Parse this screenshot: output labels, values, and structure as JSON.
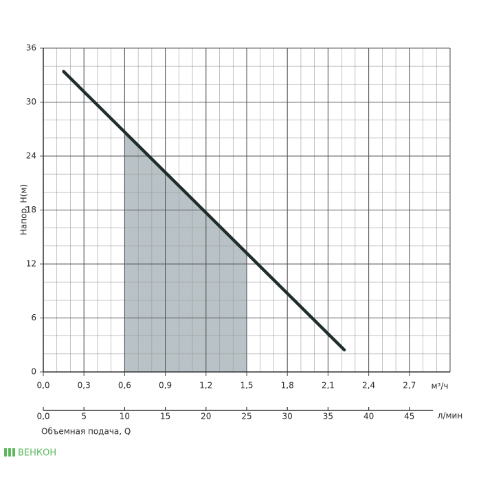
{
  "chart_data": {
    "type": "line",
    "y_label": "Напор, H(м)",
    "x_label": "Объемная подача, Q",
    "x_unit": "м³/ч",
    "x2_unit": "л/мин",
    "watermark": "ВЕНКОН",
    "xlim": [
      0,
      3.0
    ],
    "xticks": [
      {
        "value": 0,
        "label": "0,0"
      },
      {
        "value": 0.3,
        "label": "0,3"
      },
      {
        "value": 0.6,
        "label": "0,6"
      },
      {
        "value": 0.9,
        "label": "0,9"
      },
      {
        "value": 1.2,
        "label": "1,2"
      },
      {
        "value": 1.5,
        "label": "1,5"
      },
      {
        "value": 1.8,
        "label": "1,8"
      },
      {
        "value": 2.1,
        "label": "2,1"
      },
      {
        "value": 2.4,
        "label": "2,4"
      },
      {
        "value": 2.7,
        "label": "2,7"
      }
    ],
    "x2lim": [
      0,
      50
    ],
    "x2ticks": [
      {
        "value": 0,
        "label": "0,0"
      },
      5,
      10,
      15,
      20,
      25,
      30,
      35,
      40,
      45
    ],
    "ylim": [
      0,
      36
    ],
    "yticks": [
      0,
      6,
      12,
      18,
      24,
      30,
      36
    ],
    "grid": true,
    "minor_divisions": 3,
    "band": {
      "xlim": [
        0.6,
        1.5
      ],
      "color": "#b9c2c6"
    },
    "series": [
      {
        "color": "#1f2d2d",
        "x": [
          0.15,
          2.22
        ],
        "values": [
          33.4,
          2.45
        ]
      }
    ]
  }
}
